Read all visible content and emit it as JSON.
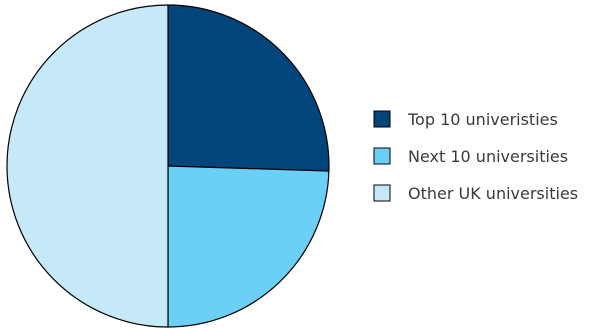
{
  "chart_data": {
    "type": "pie",
    "title": "",
    "categories": [
      "Top 10 univeristies",
      "Next 10 universities",
      "Other UK universities"
    ],
    "values": [
      25.5,
      24.5,
      50
    ],
    "colors": [
      "#00457c",
      "#6bcff6",
      "#c6e9fa"
    ],
    "legend_position": "right",
    "slice_border_color": "#000000"
  }
}
